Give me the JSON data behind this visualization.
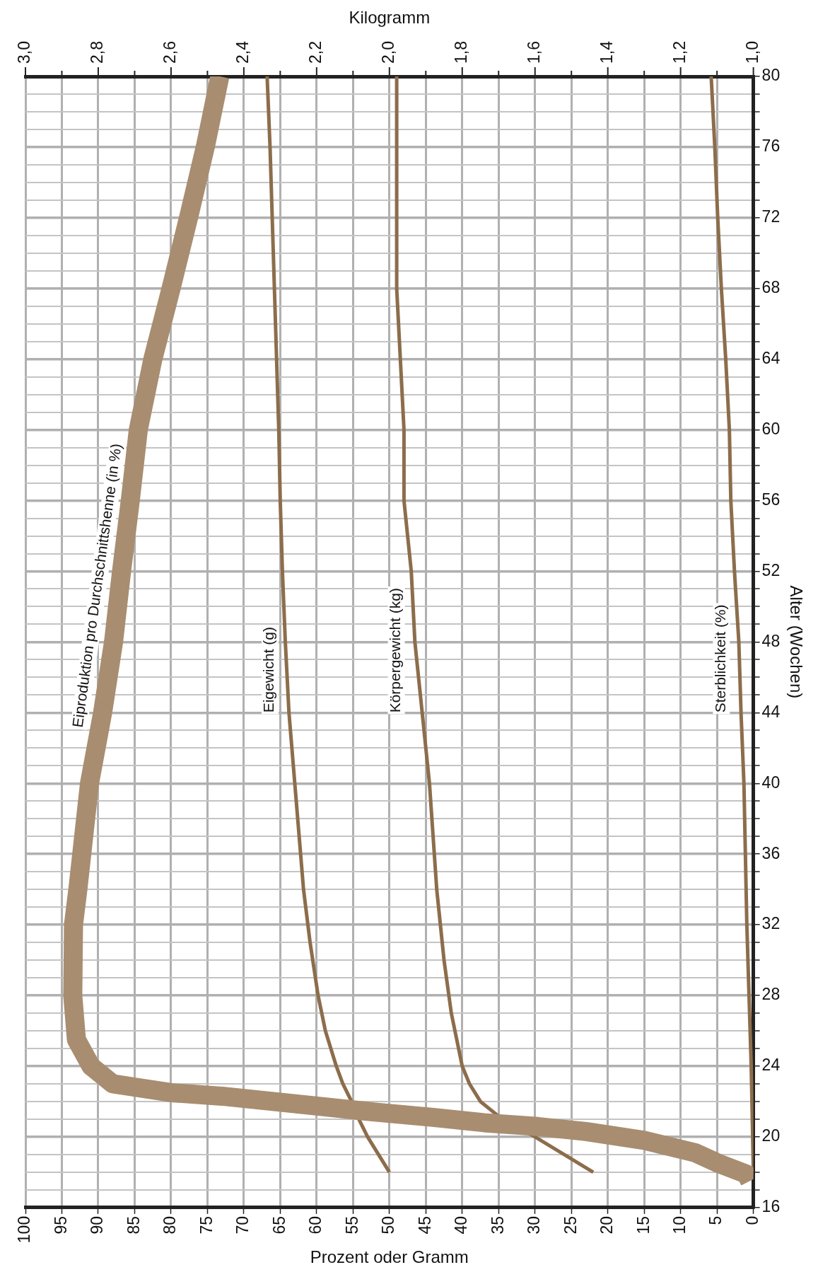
{
  "chart_data": {
    "type": "line",
    "xlabel": "Prozent oder Gramm",
    "x2label": "Kilogramm",
    "ylabel": "Alter (Wochen)",
    "xlim": [
      100,
      0
    ],
    "xticks": [
      0,
      5,
      10,
      15,
      20,
      25,
      30,
      35,
      40,
      45,
      50,
      55,
      60,
      65,
      70,
      75,
      80,
      85,
      90,
      95,
      100
    ],
    "x2lim": [
      3.0,
      1.0
    ],
    "x2ticks": [
      {
        "value": 1.0,
        "label": "1,0"
      },
      {
        "value": 1.1,
        "label": null
      },
      {
        "value": 1.2,
        "label": "1,2"
      },
      {
        "value": 1.3,
        "label": null
      },
      {
        "value": 1.4,
        "label": "1,4"
      },
      {
        "value": 1.5,
        "label": null
      },
      {
        "value": 1.6,
        "label": "1,6"
      },
      {
        "value": 1.7,
        "label": null
      },
      {
        "value": 1.8,
        "label": "1,8"
      },
      {
        "value": 1.9,
        "label": null
      },
      {
        "value": 2.0,
        "label": "2,0"
      },
      {
        "value": 2.1,
        "label": null
      },
      {
        "value": 2.2,
        "label": "2,2"
      },
      {
        "value": 2.3,
        "label": null
      },
      {
        "value": 2.4,
        "label": "2,4"
      },
      {
        "value": 2.5,
        "label": null
      },
      {
        "value": 2.6,
        "label": "2,6"
      },
      {
        "value": 2.7,
        "label": null
      },
      {
        "value": 2.8,
        "label": "2,8"
      },
      {
        "value": 2.9,
        "label": null
      },
      {
        "value": 3.0,
        "label": "3,0"
      }
    ],
    "ylim": [
      16,
      80
    ],
    "yticks": [
      16,
      {
        "value": 17,
        "label": null
      },
      {
        "value": 18,
        "label": null
      },
      {
        "value": 19,
        "label": null
      },
      20,
      {
        "value": 21,
        "label": null
      },
      {
        "value": 22,
        "label": null
      },
      {
        "value": 23,
        "label": null
      },
      24,
      {
        "value": 25,
        "label": null
      },
      {
        "value": 26,
        "label": null
      },
      {
        "value": 27,
        "label": null
      },
      28,
      {
        "value": 29,
        "label": null
      },
      {
        "value": 30,
        "label": null
      },
      {
        "value": 31,
        "label": null
      },
      32,
      {
        "value": 33,
        "label": null
      },
      {
        "value": 34,
        "label": null
      },
      {
        "value": 35,
        "label": null
      },
      36,
      {
        "value": 37,
        "label": null
      },
      {
        "value": 38,
        "label": null
      },
      {
        "value": 39,
        "label": null
      },
      40,
      {
        "value": 41,
        "label": null
      },
      {
        "value": 42,
        "label": null
      },
      {
        "value": 43,
        "label": null
      },
      44,
      {
        "value": 45,
        "label": null
      },
      {
        "value": 46,
        "label": null
      },
      {
        "value": 47,
        "label": null
      },
      48,
      {
        "value": 49,
        "label": null
      },
      {
        "value": 50,
        "label": null
      },
      {
        "value": 51,
        "label": null
      },
      52,
      {
        "value": 53,
        "label": null
      },
      {
        "value": 54,
        "label": null
      },
      {
        "value": 55,
        "label": null
      },
      56,
      {
        "value": 57,
        "label": null
      },
      {
        "value": 58,
        "label": null
      },
      {
        "value": 59,
        "label": null
      },
      60,
      {
        "value": 61,
        "label": null
      },
      {
        "value": 62,
        "label": null
      },
      {
        "value": 63,
        "label": null
      },
      64,
      {
        "value": 65,
        "label": null
      },
      {
        "value": 66,
        "label": null
      },
      {
        "value": 67,
        "label": null
      },
      68,
      {
        "value": 69,
        "label": null
      },
      {
        "value": 70,
        "label": null
      },
      {
        "value": 71,
        "label": null
      },
      72,
      {
        "value": 73,
        "label": null
      },
      {
        "value": 74,
        "label": null
      },
      {
        "value": 75,
        "label": null
      },
      76,
      {
        "value": 77,
        "label": null
      },
      {
        "value": 78,
        "label": null
      },
      {
        "value": 79,
        "label": null
      },
      80
    ],
    "grid": true,
    "legend": false,
    "marker": "none",
    "line_style": "solid",
    "series": [
      {
        "name": "Eiproduktion pro Durchschnittshenne (in %)",
        "color": "#a88d70",
        "x": [
          0.5,
          1,
          4.8,
          8,
          15,
          23,
          30,
          37,
          44,
          52,
          59,
          66,
          73,
          80,
          88,
          91,
          93,
          93.5,
          93.4,
          92.8,
          91.2,
          89.4,
          87.9,
          86.8,
          85.6,
          84.5,
          82.5,
          80,
          77.6,
          75.3,
          73.3
        ],
        "values": [
          17.5,
          17.9,
          18.5,
          19.1,
          19.8,
          20.3,
          20.6,
          20.8,
          21.1,
          21.4,
          21.7,
          22,
          22.3,
          22.5,
          23,
          24,
          25.5,
          28,
          32,
          34,
          40,
          44,
          48,
          52,
          56,
          60,
          64,
          68,
          72,
          76,
          80
        ]
      },
      {
        "name": "Eigewicht (g)",
        "color": "#8c6d4b",
        "x": [
          50,
          51.5,
          53,
          54.2,
          55.2,
          56.4,
          57.3,
          58.8,
          59.8,
          60.9,
          61.8,
          63,
          63.8,
          64.3,
          64.7,
          65,
          65.2,
          65.5,
          65.8,
          66.1,
          66.4,
          66.8
        ],
        "values": [
          18,
          19,
          20,
          21,
          22,
          23,
          24,
          26,
          28,
          31,
          34,
          40,
          44,
          48,
          52,
          56,
          60,
          64,
          68,
          72,
          76,
          80
        ]
      },
      {
        "name": "Körpergewicht (kg)",
        "color": "#8c6d4b",
        "axis": "x2",
        "x": [
          1.44,
          1.52,
          1.6,
          1.69,
          1.75,
          1.78,
          1.8,
          1.81,
          1.83,
          1.85,
          1.86,
          1.87,
          1.89,
          1.91,
          1.93,
          1.94,
          1.96,
          1.96,
          1.97,
          1.98,
          1.98
        ],
        "values": [
          18,
          19,
          20,
          21,
          22,
          23,
          24,
          25,
          27,
          30,
          32,
          34,
          40,
          44,
          48,
          52,
          56,
          60,
          64,
          68,
          80
        ]
      },
      {
        "name": "Sterblichkeit (%)",
        "color": "#8c6d4b",
        "x": [
          0,
          0.3,
          0.6,
          0.9,
          1.1,
          1.3,
          1.7,
          2,
          2.6,
          3.1,
          3.3,
          3.8,
          4.4,
          4.9,
          5.3,
          5.8
        ],
        "values": [
          18,
          24,
          28,
          32,
          36,
          40,
          44,
          48,
          52,
          56,
          60,
          64,
          68,
          72,
          76,
          80
        ]
      }
    ]
  }
}
